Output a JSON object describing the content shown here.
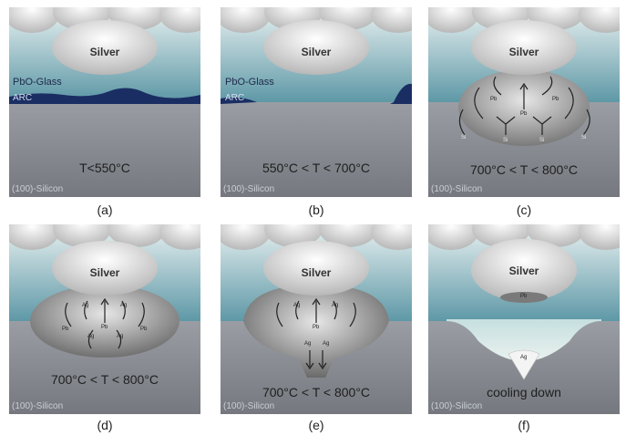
{
  "labels": {
    "silver": "Silver",
    "pbo_glass": "PbO-Glass",
    "arc": "ARC",
    "substrate": "(100)-Silicon",
    "pb": "Pb",
    "si": "Si",
    "ag": "Ag"
  },
  "panels": [
    {
      "caption": "(a)",
      "temperature": "T<550°C"
    },
    {
      "caption": "(b)",
      "temperature": "550°C < T < 700°C"
    },
    {
      "caption": "(c)",
      "temperature": "700°C < T < 800°C"
    },
    {
      "caption": "(d)",
      "temperature": "700°C < T < 800°C"
    },
    {
      "caption": "(e)",
      "temperature": "700°C < T < 800°C"
    },
    {
      "caption": "(f)",
      "temperature": "cooling down"
    }
  ],
  "colors": {
    "glass_top": "#cfe3e6",
    "glass_bottom": "#5f9aa8",
    "silicon": "#8a8d93",
    "arc": "#1a2e63",
    "silver": "#d9d9d9"
  }
}
